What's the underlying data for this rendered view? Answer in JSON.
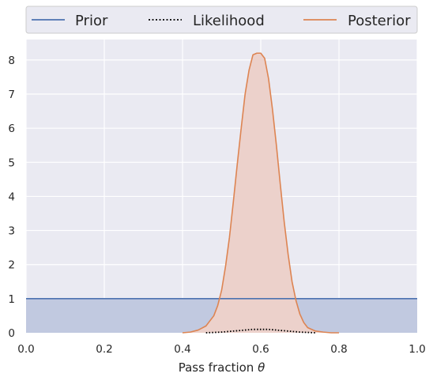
{
  "chart_data": {
    "type": "area",
    "xlabel_prefix": "Pass fraction ",
    "xlabel_symbol": "θ",
    "ylabel": "",
    "title": "",
    "xlim": [
      0.0,
      1.0
    ],
    "ylim": [
      0,
      8.6
    ],
    "x_ticks": [
      0.0,
      0.2,
      0.4,
      0.6,
      0.8,
      1.0
    ],
    "x_tick_labels": [
      "0.0",
      "0.2",
      "0.4",
      "0.6",
      "0.8",
      "1.0"
    ],
    "y_ticks": [
      0,
      1,
      2,
      3,
      4,
      5,
      6,
      7,
      8
    ],
    "y_tick_labels": [
      "0",
      "1",
      "2",
      "3",
      "4",
      "5",
      "6",
      "7",
      "8"
    ],
    "grid": true,
    "legend_position": "top",
    "series": [
      {
        "name": "Prior",
        "style": "solid",
        "filled": true,
        "color": "#4c72b0",
        "fill_color": "#c1c9e0",
        "x": [
          0.0,
          1.0
        ],
        "y": [
          1.0,
          1.0
        ]
      },
      {
        "name": "Likelihood",
        "style": "dotted",
        "filled": false,
        "color": "#000000",
        "x": [
          0.46,
          0.5,
          0.54,
          0.58,
          0.6,
          0.62,
          0.66,
          0.7,
          0.74
        ],
        "y": [
          0.0,
          0.02,
          0.06,
          0.1,
          0.1,
          0.1,
          0.06,
          0.02,
          0.0
        ]
      },
      {
        "name": "Posterior",
        "style": "solid",
        "filled": true,
        "color": "#dd8452",
        "fill_color": "#ecd1cb",
        "x": [
          0.4,
          0.42,
          0.44,
          0.46,
          0.48,
          0.49,
          0.5,
          0.51,
          0.52,
          0.53,
          0.54,
          0.55,
          0.56,
          0.57,
          0.58,
          0.59,
          0.6,
          0.61,
          0.62,
          0.63,
          0.64,
          0.65,
          0.66,
          0.67,
          0.68,
          0.69,
          0.7,
          0.71,
          0.72,
          0.74,
          0.76,
          0.78,
          0.8
        ],
        "y": [
          0.0,
          0.02,
          0.08,
          0.2,
          0.5,
          0.8,
          1.25,
          1.95,
          2.8,
          3.85,
          4.95,
          6.0,
          7.0,
          7.7,
          8.15,
          8.2,
          8.2,
          8.05,
          7.45,
          6.55,
          5.5,
          4.35,
          3.25,
          2.3,
          1.5,
          0.95,
          0.55,
          0.3,
          0.15,
          0.05,
          0.02,
          0.0,
          0.0
        ]
      }
    ]
  }
}
